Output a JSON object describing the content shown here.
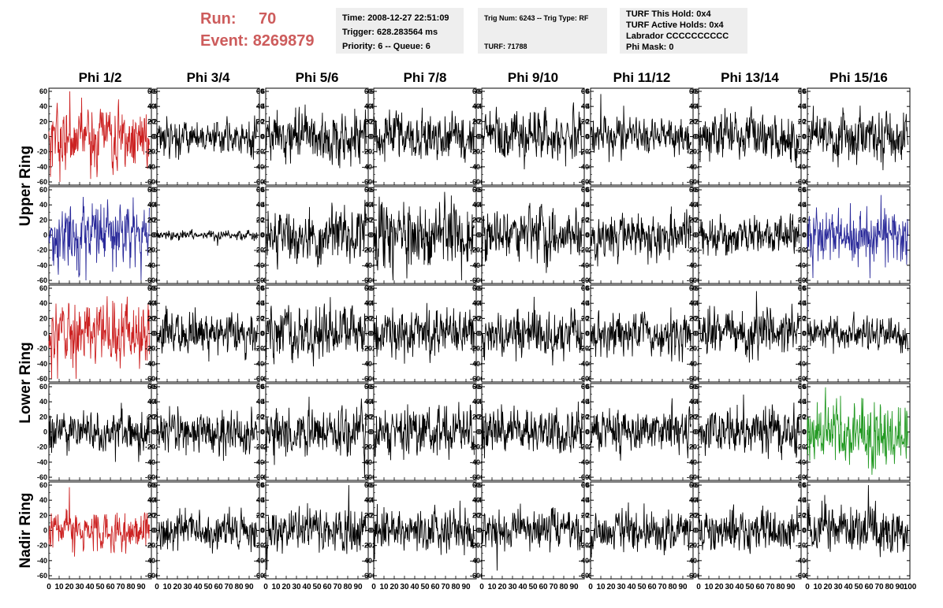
{
  "header": {
    "run_label": "Run:",
    "run_value": "70",
    "event_label": "Event:",
    "event_value": "8269879"
  },
  "info_boxes": [
    {
      "lines": [
        "Time: 2008-12-27 22:51:09",
        "Trigger: 628.283564 ms",
        "Priority: 6 -- Queue: 6"
      ]
    },
    {
      "lines": [
        "Trig Num: 6243 -- Trig Type: RF",
        "",
        "TURF: 71788"
      ]
    },
    {
      "lines": [
        "TURF This Hold: 0x4",
        "TURF Active Holds: 0x4",
        "Labrador CCCCCCCCCC",
        "Phi Mask: 0"
      ]
    }
  ],
  "chart_data": {
    "type": "line",
    "columns": [
      "Phi 1/2",
      "Phi 3/4",
      "Phi 5/6",
      "Phi 7/8",
      "Phi 9/10",
      "Phi 11/12",
      "Phi 13/14",
      "Phi 15/16"
    ],
    "rows": [
      "Upper Ring",
      "Upper Ring",
      "Lower Ring",
      "Lower Ring",
      "Nadir Ring"
    ],
    "row_labels": [
      {
        "label": "Upper Ring",
        "span_rows": [
          0,
          1
        ]
      },
      {
        "label": "Lower Ring",
        "span_rows": [
          2,
          3
        ]
      },
      {
        "label": "Nadir Ring",
        "span_rows": [
          4,
          4
        ]
      }
    ],
    "xlim": [
      0,
      100
    ],
    "ylim": [
      -60,
      60
    ],
    "x_ticks": [
      0,
      10,
      20,
      30,
      40,
      50,
      60,
      70,
      80,
      90,
      100
    ],
    "y_ticks": [
      -60,
      -40,
      -20,
      0,
      20,
      40,
      60
    ],
    "samples": 256,
    "colors": {
      "default": "#000000",
      "red": "#cc2222",
      "blue": "#2a2a9a",
      "green": "#229922"
    },
    "panels": [
      [
        {
          "color": "red",
          "amp": 20
        },
        {
          "color": "default",
          "amp": 11
        },
        {
          "color": "default",
          "amp": 17
        },
        {
          "color": "default",
          "amp": 15
        },
        {
          "color": "default",
          "amp": 16
        },
        {
          "color": "default",
          "amp": 12
        },
        {
          "color": "default",
          "amp": 14
        },
        {
          "color": "default",
          "amp": 15
        }
      ],
      [
        {
          "color": "blue",
          "amp": 20
        },
        {
          "color": "default",
          "amp": 3
        },
        {
          "color": "default",
          "amp": 17
        },
        {
          "color": "default",
          "amp": 21
        },
        {
          "color": "default",
          "amp": 17
        },
        {
          "color": "default",
          "amp": 15
        },
        {
          "color": "default",
          "amp": 12
        },
        {
          "color": "blue",
          "amp": 18
        }
      ],
      [
        {
          "color": "red",
          "amp": 19
        },
        {
          "color": "default",
          "amp": 13
        },
        {
          "color": "default",
          "amp": 18
        },
        {
          "color": "default",
          "amp": 15
        },
        {
          "color": "default",
          "amp": 15
        },
        {
          "color": "default",
          "amp": 13
        },
        {
          "color": "default",
          "amp": 15
        },
        {
          "color": "default",
          "amp": 10
        }
      ],
      [
        {
          "color": "default",
          "amp": 13
        },
        {
          "color": "default",
          "amp": 14
        },
        {
          "color": "default",
          "amp": 15
        },
        {
          "color": "default",
          "amp": 15
        },
        {
          "color": "default",
          "amp": 14
        },
        {
          "color": "default",
          "amp": 14
        },
        {
          "color": "default",
          "amp": 14
        },
        {
          "color": "green",
          "amp": 20
        }
      ],
      [
        {
          "color": "red",
          "amp": 13
        },
        {
          "color": "default",
          "amp": 12
        },
        {
          "color": "default",
          "amp": 13
        },
        {
          "color": "default",
          "amp": 15
        },
        {
          "color": "default",
          "amp": 12
        },
        {
          "color": "default",
          "amp": 13
        },
        {
          "color": "default",
          "amp": 13
        },
        {
          "color": "default",
          "amp": 14
        }
      ]
    ]
  }
}
